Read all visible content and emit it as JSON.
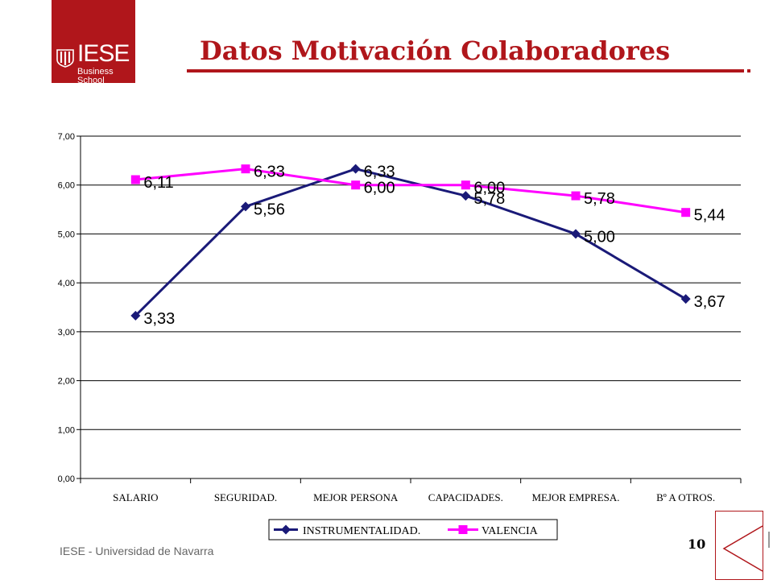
{
  "logo": {
    "word": "IESE",
    "subtitle": "Business School"
  },
  "slide": {
    "title": "Datos Motivación Colaboradores",
    "footer": "IESE - Universidad de Navarra",
    "page_number": "10"
  },
  "colors": {
    "brand": "#b0161b",
    "series_instrumentalidad": "#1a1a78",
    "series_valencia": "#ff00ff"
  },
  "chart_data": {
    "type": "line",
    "title": "",
    "xlabel": "",
    "ylabel": "",
    "categories": [
      "SALARIO",
      "SEGURIDAD.",
      "MEJOR PERSONA",
      "CAPACIDADES.",
      "MEJOR EMPRESA.",
      "Bº A OTROS."
    ],
    "ylim": [
      0,
      7
    ],
    "yticks": [
      "0,00",
      "1,00",
      "2,00",
      "3,00",
      "4,00",
      "5,00",
      "6,00",
      "7,00"
    ],
    "grid": true,
    "legend": "bottom",
    "series": [
      {
        "name": "INSTRUMENTALIDAD.",
        "marker": "diamond",
        "values": [
          3.33,
          5.56,
          6.33,
          5.78,
          5.0,
          3.67
        ],
        "labels": [
          "3,33",
          "5,56",
          "6,33",
          "5,78",
          "5,00",
          "3,67"
        ]
      },
      {
        "name": "VALENCIA",
        "marker": "square",
        "values": [
          6.11,
          6.33,
          6.0,
          6.0,
          5.78,
          5.44
        ],
        "labels": [
          "6,11",
          "6,33",
          "6,00",
          "6,00",
          "5,78",
          "5,44"
        ]
      }
    ]
  }
}
